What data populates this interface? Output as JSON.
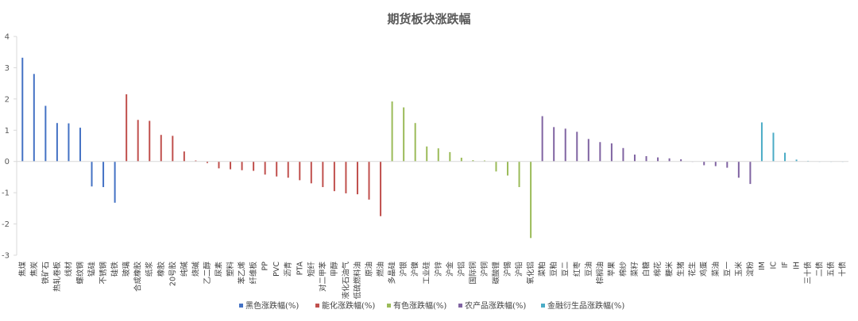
{
  "chart_data": {
    "type": "bar",
    "title": "期货板块涨跌幅",
    "ylim": [
      -3,
      4
    ],
    "yticks": [
      4,
      3,
      2,
      1,
      0,
      -1,
      -2,
      -3
    ],
    "grid": false,
    "legend_position": "bottom",
    "categories": [
      "焦煤",
      "焦炭",
      "铁矿石",
      "热轧卷板",
      "线材",
      "螺纹钢",
      "锰硅",
      "不锈钢",
      "硅铁",
      "玻璃",
      "合成橡胶",
      "纸浆",
      "橡胶",
      "20号胶",
      "纯碱",
      "烧碱",
      "乙二醇",
      "尿素",
      "塑料",
      "苯乙烯",
      "纤维板",
      "PP",
      "PVC",
      "沥青",
      "PTA",
      "短纤",
      "对二甲苯",
      "甲醇",
      "液化石油气",
      "低硫燃料油",
      "原油",
      "燃油",
      "多晶硅",
      "沪银",
      "沪镍",
      "工业硅",
      "沪锌",
      "沪金",
      "沪铝",
      "国际铜",
      "沪铜",
      "碳酸锂",
      "沪锡",
      "沪铅",
      "氧化铝",
      "菜粕",
      "豆粕",
      "豆二",
      "红枣",
      "豆油",
      "棕榈油",
      "苹果",
      "棉纱",
      "菜籽",
      "白糖",
      "棉花",
      "粳米",
      "生猪",
      "花生",
      "鸡蛋",
      "菜油",
      "豆一",
      "玉米",
      "淀粉",
      "IM",
      "IC",
      "IF",
      "IH",
      "三十债",
      "二债",
      "五债",
      "十债"
    ],
    "series": [
      {
        "name": "黑色涨跌幅(%)",
        "color": "#4472C4",
        "values": [
          3.32,
          2.8,
          1.78,
          1.23,
          1.22,
          1.08,
          -0.8,
          -0.82,
          -1.32,
          null,
          null,
          null,
          null,
          null,
          null,
          null,
          null,
          null,
          null,
          null,
          null,
          null,
          null,
          null,
          null,
          null,
          null,
          null,
          null,
          null,
          null,
          null,
          null,
          null,
          null,
          null,
          null,
          null,
          null,
          null,
          null,
          null,
          null,
          null,
          null,
          null,
          null,
          null,
          null,
          null,
          null,
          null,
          null,
          null,
          null,
          null,
          null,
          null,
          null,
          null,
          null,
          null,
          null,
          null,
          null,
          null,
          null,
          null,
          null,
          null,
          null,
          null
        ]
      },
      {
        "name": "能化涨跌幅(%)",
        "color": "#C0504D",
        "values": [
          null,
          null,
          null,
          null,
          null,
          null,
          null,
          null,
          null,
          2.15,
          1.33,
          1.3,
          0.85,
          0.82,
          0.32,
          0.03,
          -0.05,
          -0.22,
          -0.25,
          -0.28,
          -0.3,
          -0.42,
          -0.48,
          -0.52,
          -0.6,
          -0.7,
          -0.82,
          -0.95,
          -1.02,
          -1.05,
          -1.22,
          -1.75,
          null,
          null,
          null,
          null,
          null,
          null,
          null,
          null,
          null,
          null,
          null,
          null,
          null,
          null,
          null,
          null,
          null,
          null,
          null,
          null,
          null,
          null,
          null,
          null,
          null,
          null,
          null,
          null,
          null,
          null,
          null,
          null,
          null,
          null,
          null,
          null,
          null,
          null,
          null,
          null
        ]
      },
      {
        "name": "有色涨跌幅(%)",
        "color": "#9BBB59",
        "values": [
          null,
          null,
          null,
          null,
          null,
          null,
          null,
          null,
          null,
          null,
          null,
          null,
          null,
          null,
          null,
          null,
          null,
          null,
          null,
          null,
          null,
          null,
          null,
          null,
          null,
          null,
          null,
          null,
          null,
          null,
          null,
          null,
          1.92,
          1.73,
          1.23,
          0.48,
          0.42,
          0.3,
          0.12,
          0.04,
          0.03,
          -0.32,
          -0.45,
          -0.82,
          -2.45,
          null,
          null,
          null,
          null,
          null,
          null,
          null,
          null,
          null,
          null,
          null,
          null,
          null,
          null,
          null,
          null,
          null,
          null,
          null,
          null,
          null,
          null,
          null,
          null,
          null,
          null,
          null
        ]
      },
      {
        "name": "农产品涨跌幅(%)",
        "color": "#8064A2",
        "values": [
          null,
          null,
          null,
          null,
          null,
          null,
          null,
          null,
          null,
          null,
          null,
          null,
          null,
          null,
          null,
          null,
          null,
          null,
          null,
          null,
          null,
          null,
          null,
          null,
          null,
          null,
          null,
          null,
          null,
          null,
          null,
          null,
          null,
          null,
          null,
          null,
          null,
          null,
          null,
          null,
          null,
          null,
          null,
          null,
          null,
          1.45,
          1.1,
          1.05,
          0.95,
          0.72,
          0.62,
          0.58,
          0.43,
          0.22,
          0.17,
          0.13,
          0.1,
          0.07,
          0.0,
          -0.12,
          -0.15,
          -0.2,
          -0.52,
          -0.72,
          null,
          null,
          null,
          null,
          null,
          null,
          null,
          null
        ]
      },
      {
        "name": "金融衍生品涨跌幅(%)",
        "color": "#4BACC6",
        "values": [
          null,
          null,
          null,
          null,
          null,
          null,
          null,
          null,
          null,
          null,
          null,
          null,
          null,
          null,
          null,
          null,
          null,
          null,
          null,
          null,
          null,
          null,
          null,
          null,
          null,
          null,
          null,
          null,
          null,
          null,
          null,
          null,
          null,
          null,
          null,
          null,
          null,
          null,
          null,
          null,
          null,
          null,
          null,
          null,
          null,
          null,
          null,
          null,
          null,
          null,
          null,
          null,
          null,
          null,
          null,
          null,
          null,
          null,
          null,
          null,
          null,
          null,
          null,
          null,
          1.25,
          0.92,
          0.28,
          0.06,
          0.02,
          0.0,
          0.0,
          0.0
        ]
      }
    ]
  }
}
